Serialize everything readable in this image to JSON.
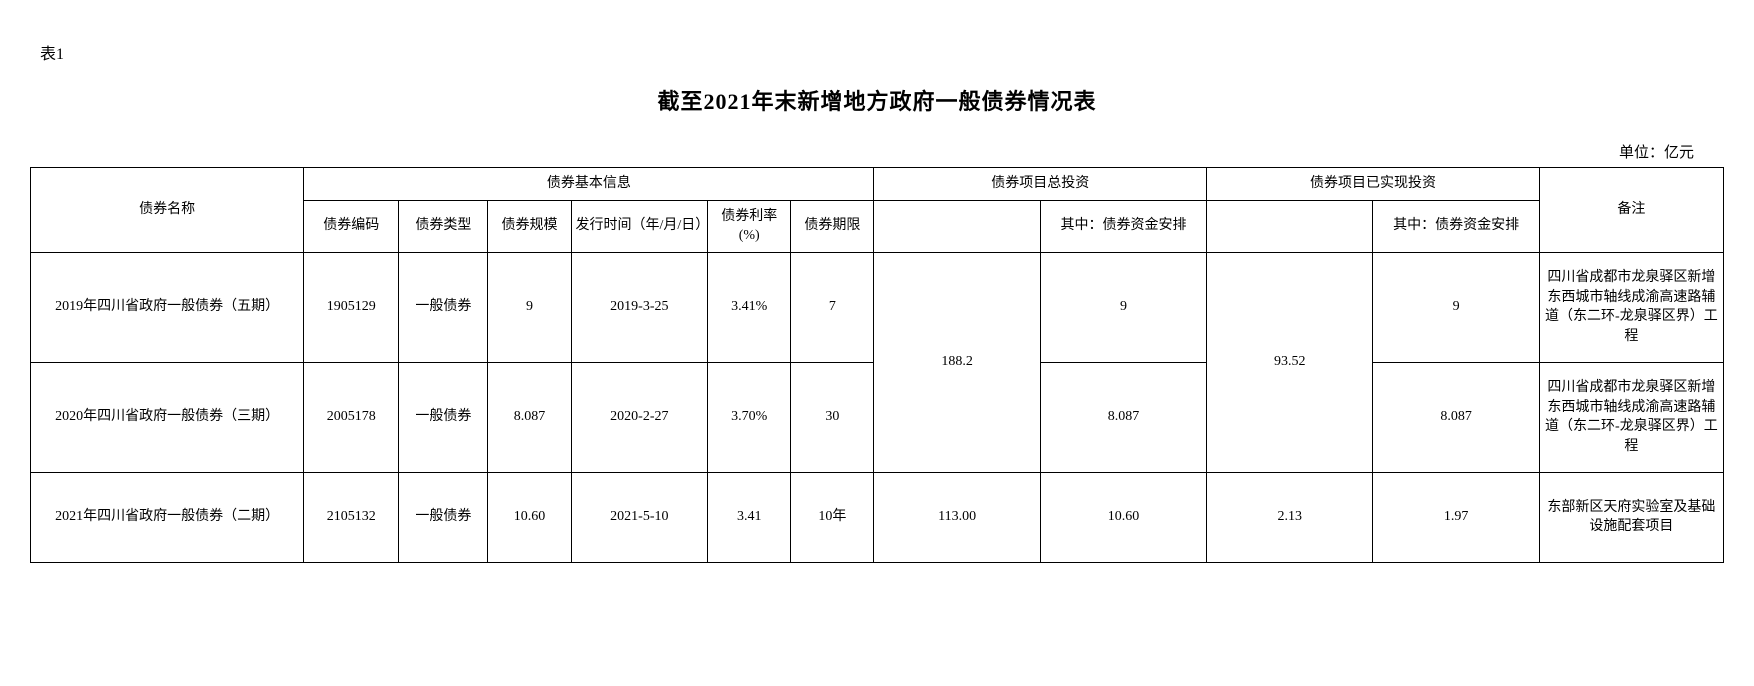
{
  "table_label": "表1",
  "title": "截至2021年末新增地方政府一般债券情况表",
  "unit": "单位：亿元",
  "headers": {
    "bond_name": "债券名称",
    "basic_info": "债券基本信息",
    "bond_code": "债券编码",
    "bond_type": "债券类型",
    "bond_scale": "债券规模",
    "issue_date": "发行时间（年/月/日）",
    "rate": "债券利率(%)",
    "term": "债券期限",
    "total_invest": "债券项目总投资",
    "total_sub": "其中：债券资金安排",
    "realized_invest": "债券项目已实现投资",
    "realized_sub": "其中：债券资金安排",
    "remark": "备注"
  },
  "rows": [
    {
      "name": "2019年四川省政府一般债券（五期）",
      "code": "1905129",
      "type": "一般债券",
      "scale": "9",
      "date": "2019-3-25",
      "rate": "3.41%",
      "term": "7",
      "total_invest": "188.2",
      "fund_arrange": "9",
      "realized_invest": "93.52",
      "realized_fund": "9",
      "remark": "四川省成都市龙泉驿区新增东西城市轴线成渝高速路辅道（东二环-龙泉驿区界）工程"
    },
    {
      "name": "2020年四川省政府一般债券（三期）",
      "code": "2005178",
      "type": "一般债券",
      "scale": "8.087",
      "date": "2020-2-27",
      "rate": "3.70%",
      "term": "30",
      "fund_arrange": "8.087",
      "realized_fund": "8.087",
      "remark": "四川省成都市龙泉驿区新增东西城市轴线成渝高速路辅道（东二环-龙泉驿区界）工程"
    },
    {
      "name": "2021年四川省政府一般债券（二期）",
      "code": "2105132",
      "type": "一般债券",
      "scale": "10.60",
      "date": "2021-5-10",
      "rate": "3.41",
      "term": "10年",
      "total_invest": "113.00",
      "fund_arrange": "10.60",
      "realized_invest": "2.13",
      "realized_fund": "1.97",
      "remark": "东部新区天府实验室及基础设施配套项目"
    }
  ]
}
